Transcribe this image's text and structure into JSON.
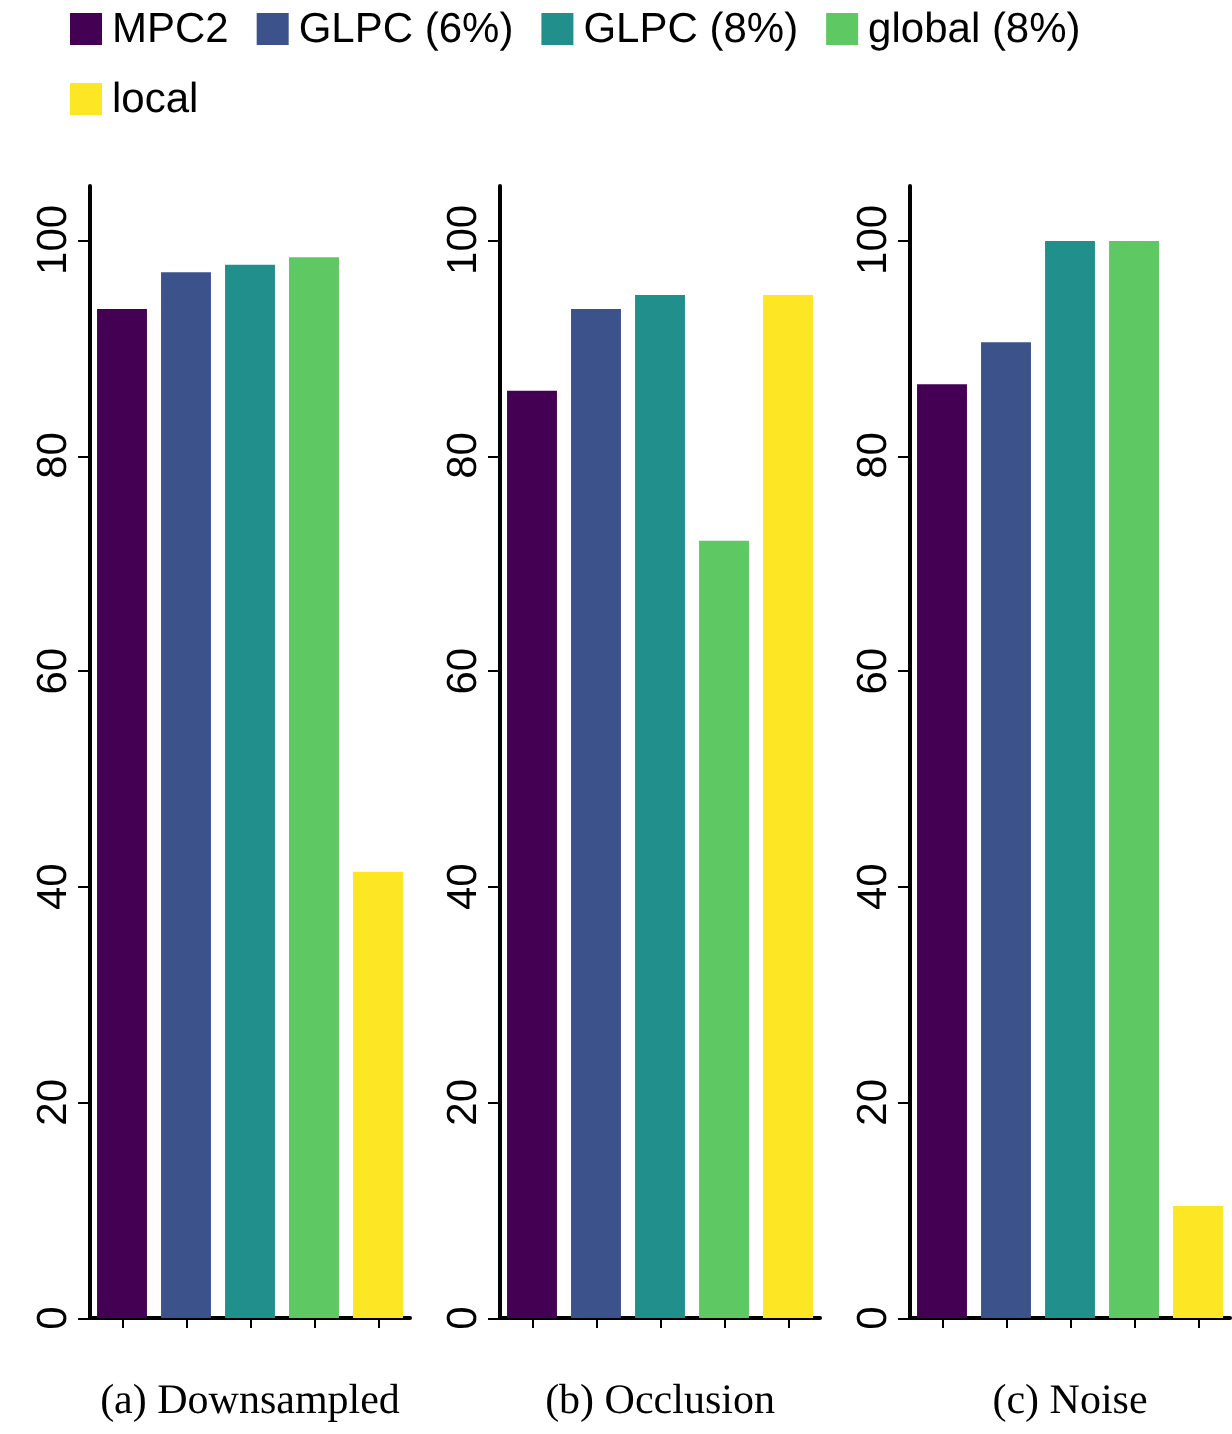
{
  "chart_data": [
    {
      "type": "bar",
      "xlabel": "(a) Downsampled",
      "categories": [
        null,
        null,
        null,
        null,
        null
      ],
      "ylim": [
        0,
        105
      ],
      "yticks": [
        0,
        20,
        40,
        60,
        80,
        100
      ],
      "grid": false,
      "legend": "top",
      "series": [
        {
          "name": "MPC2",
          "color": "#440154",
          "values": [
            93.6,
            null,
            null,
            null,
            null
          ]
        },
        {
          "name": "GLPC (6%)",
          "color": "#3b528b",
          "values": [
            null,
            97.0,
            null,
            null,
            null
          ]
        },
        {
          "name": "GLPC (8%)",
          "color": "#21908c",
          "values": [
            null,
            null,
            97.7,
            null,
            null
          ]
        },
        {
          "name": "global (8%)",
          "color": "#5ec962",
          "values": [
            null,
            null,
            null,
            98.4,
            null
          ]
        },
        {
          "name": "local",
          "color": "#fde725",
          "values": [
            null,
            null,
            null,
            null,
            41.4
          ]
        }
      ]
    },
    {
      "type": "bar",
      "xlabel": "(b) Occlusion",
      "categories": [
        null,
        null,
        null,
        null,
        null
      ],
      "ylim": [
        0,
        105
      ],
      "yticks": [
        0,
        20,
        40,
        60,
        80,
        100
      ],
      "grid": false,
      "series": [
        {
          "color": "#440154",
          "values": [
            86.0,
            null,
            null,
            null,
            null
          ]
        },
        {
          "color": "#3b528b",
          "values": [
            null,
            93.6,
            null,
            null,
            null
          ]
        },
        {
          "color": "#21908c",
          "values": [
            null,
            null,
            94.9,
            null,
            null
          ]
        },
        {
          "color": "#5ec962",
          "values": [
            null,
            null,
            null,
            72.1,
            null
          ]
        },
        {
          "color": "#fde725",
          "values": [
            null,
            null,
            null,
            null,
            94.9
          ]
        }
      ]
    },
    {
      "type": "bar",
      "xlabel": "(c) Noise",
      "categories": [
        null,
        null,
        null,
        null,
        null
      ],
      "ylim": [
        0,
        105
      ],
      "yticks": [
        0,
        20,
        40,
        60,
        80,
        100
      ],
      "grid": false,
      "series": [
        {
          "color": "#440154",
          "values": [
            86.6,
            null,
            null,
            null,
            null
          ]
        },
        {
          "color": "#3b528b",
          "values": [
            null,
            90.5,
            null,
            null,
            null
          ]
        },
        {
          "color": "#21908c",
          "values": [
            null,
            null,
            99.9,
            null,
            null
          ]
        },
        {
          "color": "#5ec962",
          "values": [
            null,
            null,
            null,
            99.9,
            null
          ]
        },
        {
          "color": "#fde725",
          "values": [
            null,
            null,
            null,
            null,
            10.4
          ]
        }
      ]
    }
  ]
}
